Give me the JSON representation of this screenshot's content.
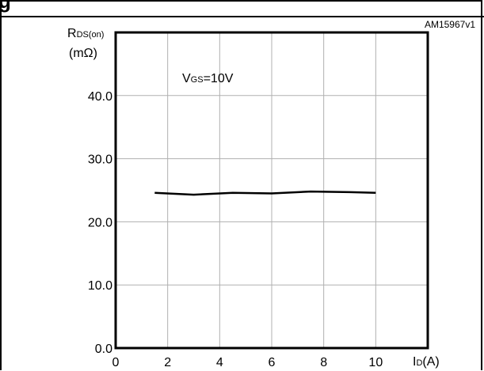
{
  "heading_fragment": "g",
  "figure_code": "AM15967v1",
  "colors": {
    "line": "#000000",
    "grid": "#b0b0b0",
    "frame": "#000000"
  },
  "chart_data": {
    "type": "line",
    "title": "",
    "xlabel": {
      "main": "I",
      "sub": "D",
      "unit": "(A)"
    },
    "ylabel": {
      "main": "R",
      "sub": "DS(on)",
      "unit": "(mΩ)"
    },
    "annotation": {
      "main": "V",
      "sub": "GS",
      "rest": "=10V"
    },
    "xlim": [
      0,
      12
    ],
    "ylim": [
      0,
      50
    ],
    "x_ticks": [
      0,
      2,
      4,
      6,
      8,
      10
    ],
    "x_tick_labels": [
      "0",
      "2",
      "4",
      "6",
      "8",
      "10"
    ],
    "y_ticks": [
      0,
      10,
      20,
      30,
      40
    ],
    "y_tick_labels": [
      "0.0",
      "10.0",
      "20.0",
      "30.0",
      "40.0"
    ],
    "grid": true,
    "series": [
      {
        "x": [
          1.5,
          3,
          4.5,
          6,
          7.5,
          9,
          10
        ],
        "y": [
          24.6,
          24.3,
          24.6,
          24.5,
          24.8,
          24.7,
          24.6
        ]
      }
    ]
  }
}
